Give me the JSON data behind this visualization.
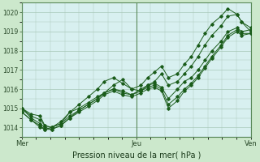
{
  "xlabel": "Pression niveau de la mer( hPa )",
  "bg_color": "#cce8cc",
  "plot_bg_color": "#d8f0f0",
  "grid_color": "#a8c8b8",
  "line_color": "#1a5c1a",
  "ylim": [
    1013.5,
    1020.5
  ],
  "xtick_labels": [
    "Mer",
    "Jeu",
    "Ven"
  ],
  "xtick_positions": [
    0.0,
    0.5,
    1.0
  ],
  "ytick_values": [
    1014,
    1015,
    1016,
    1017,
    1018,
    1019,
    1020
  ],
  "series": [
    {
      "x": [
        0.0,
        0.04,
        0.08,
        0.1,
        0.13,
        0.17,
        0.21,
        0.25,
        0.29,
        0.33,
        0.36,
        0.4,
        0.44,
        0.48,
        0.52,
        0.55,
        0.58,
        0.61,
        0.64,
        0.68,
        0.71,
        0.74,
        0.77,
        0.8,
        0.83,
        0.87,
        0.9,
        0.94,
        0.96,
        1.0
      ],
      "y": [
        1015.0,
        1014.7,
        1014.6,
        1014.1,
        1014.0,
        1014.2,
        1014.8,
        1015.0,
        1015.3,
        1015.6,
        1015.8,
        1016.0,
        1015.9,
        1015.7,
        1016.0,
        1016.2,
        1016.3,
        1016.1,
        1015.5,
        1016.0,
        1016.4,
        1016.6,
        1017.0,
        1017.5,
        1018.0,
        1018.5,
        1019.0,
        1019.2,
        1019.0,
        1019.1
      ]
    },
    {
      "x": [
        0.0,
        0.04,
        0.08,
        0.1,
        0.13,
        0.17,
        0.21,
        0.25,
        0.29,
        0.33,
        0.36,
        0.4,
        0.44,
        0.48,
        0.52,
        0.55,
        0.58,
        0.61,
        0.64,
        0.68,
        0.71,
        0.74,
        0.77,
        0.8,
        0.83,
        0.87,
        0.9,
        0.94,
        0.96,
        1.0
      ],
      "y": [
        1015.0,
        1014.6,
        1014.4,
        1014.1,
        1014.0,
        1014.2,
        1014.6,
        1014.9,
        1015.2,
        1015.5,
        1015.8,
        1016.0,
        1015.8,
        1015.7,
        1015.9,
        1016.1,
        1016.2,
        1016.0,
        1015.2,
        1015.6,
        1016.0,
        1016.3,
        1016.7,
        1017.2,
        1017.7,
        1018.3,
        1018.8,
        1019.1,
        1018.9,
        1018.9
      ]
    },
    {
      "x": [
        0.0,
        0.04,
        0.08,
        0.1,
        0.13,
        0.17,
        0.21,
        0.25,
        0.29,
        0.33,
        0.36,
        0.4,
        0.44,
        0.48,
        0.52,
        0.55,
        0.58,
        0.61,
        0.64,
        0.68,
        0.71,
        0.74,
        0.77,
        0.8,
        0.83,
        0.87,
        0.9,
        0.94,
        0.96,
        1.0
      ],
      "y": [
        1015.0,
        1014.5,
        1014.2,
        1014.0,
        1013.9,
        1014.1,
        1014.5,
        1014.8,
        1015.1,
        1015.4,
        1015.7,
        1015.9,
        1015.7,
        1015.6,
        1015.8,
        1016.0,
        1016.1,
        1015.9,
        1015.0,
        1015.4,
        1015.9,
        1016.2,
        1016.6,
        1017.1,
        1017.6,
        1018.2,
        1018.7,
        1019.0,
        1018.8,
        1018.9
      ]
    },
    {
      "x": [
        0.0,
        0.04,
        0.08,
        0.1,
        0.13,
        0.17,
        0.21,
        0.25,
        0.29,
        0.33,
        0.36,
        0.4,
        0.44,
        0.48,
        0.52,
        0.55,
        0.58,
        0.61,
        0.64,
        0.68,
        0.71,
        0.74,
        0.77,
        0.8,
        0.83,
        0.87,
        0.9,
        0.94,
        0.96,
        1.0
      ],
      "y": [
        1014.8,
        1014.4,
        1014.1,
        1013.9,
        1013.9,
        1014.1,
        1014.5,
        1014.9,
        1015.2,
        1015.5,
        1015.8,
        1016.2,
        1016.5,
        1016.0,
        1015.9,
        1016.2,
        1016.4,
        1016.8,
        1016.2,
        1016.4,
        1016.8,
        1017.2,
        1017.7,
        1018.3,
        1018.8,
        1019.3,
        1019.8,
        1019.9,
        1019.5,
        1019.0
      ]
    },
    {
      "x": [
        0.0,
        0.04,
        0.08,
        0.1,
        0.13,
        0.17,
        0.21,
        0.25,
        0.29,
        0.33,
        0.36,
        0.4,
        0.44,
        0.48,
        0.52,
        0.55,
        0.58,
        0.61,
        0.64,
        0.68,
        0.71,
        0.74,
        0.77,
        0.8,
        0.83,
        0.87,
        0.9,
        0.94,
        0.96,
        1.0
      ],
      "y": [
        1014.8,
        1014.4,
        1014.0,
        1013.9,
        1014.0,
        1014.3,
        1014.8,
        1015.2,
        1015.6,
        1016.0,
        1016.4,
        1016.6,
        1016.3,
        1016.0,
        1016.2,
        1016.6,
        1016.9,
        1017.2,
        1016.6,
        1016.8,
        1017.3,
        1017.7,
        1018.3,
        1018.9,
        1019.4,
        1019.8,
        1020.2,
        1019.9,
        1019.5,
        1019.2
      ]
    }
  ]
}
